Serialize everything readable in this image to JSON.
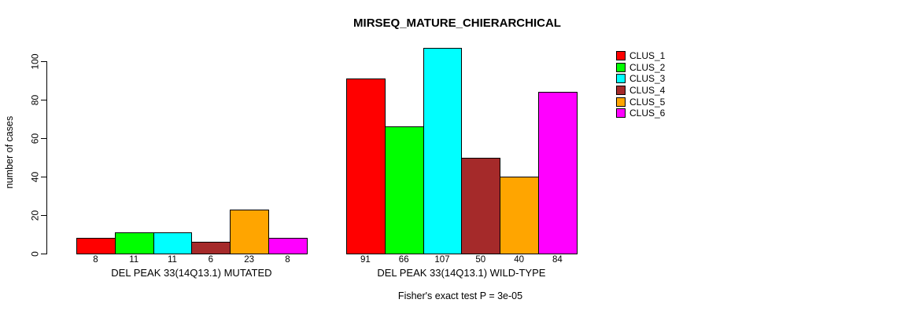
{
  "chart_data": {
    "type": "bar",
    "title": "MIRSEQ_MATURE_CHIERARCHICAL",
    "ylabel": "number of cases",
    "annotation": "Fisher's exact test P = 3e-05",
    "yticks": [
      0,
      20,
      40,
      60,
      80,
      100
    ],
    "ylim": [
      0,
      107
    ],
    "grid": false,
    "legend_position": "right",
    "background_color": "#ffffff",
    "bar_border_color": "#000000",
    "series_colors": [
      "#ff0000",
      "#00ff00",
      "#00ffff",
      "#a52a2a",
      "#ffa500",
      "#ff00ff"
    ],
    "groups": [
      {
        "label": "DEL PEAK 33(14Q13.1) MUTATED",
        "values": [
          8,
          11,
          11,
          6,
          23,
          8
        ]
      },
      {
        "label": "DEL PEAK 33(14Q13.1) WILD-TYPE",
        "values": [
          91,
          66,
          107,
          50,
          40,
          84
        ]
      }
    ],
    "legend": [
      {
        "label": "CLUS_1",
        "color": "#ff0000"
      },
      {
        "label": "CLUS_2",
        "color": "#00ff00"
      },
      {
        "label": "CLUS_3",
        "color": "#00ffff"
      },
      {
        "label": "CLUS_4",
        "color": "#a52a2a"
      },
      {
        "label": "CLUS_5",
        "color": "#ffa500"
      },
      {
        "label": "CLUS_6",
        "color": "#ff00ff"
      }
    ]
  }
}
